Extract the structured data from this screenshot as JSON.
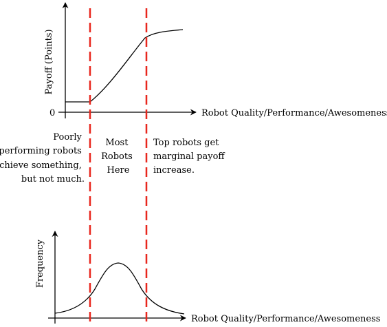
{
  "top_plot": {
    "y_axis_label": "Payoff (Points)",
    "x_axis_label": "Robot Quality/Performance/Awesomeness",
    "zero_label": "0"
  },
  "annotations": {
    "left": [
      "Poorly",
      "performing robots",
      "achieve something,",
      "but not much."
    ],
    "middle": [
      "Most",
      "Robots",
      "Here"
    ],
    "right": [
      "Top robots get",
      "marginal payoff",
      "increase."
    ]
  },
  "bottom_plot": {
    "y_axis_label": "Frequency",
    "x_axis_label": "Robot Quality/Performance/Awesomeness"
  },
  "colors": {
    "threshold_line": "#e8261c",
    "axes": "#000000"
  }
}
